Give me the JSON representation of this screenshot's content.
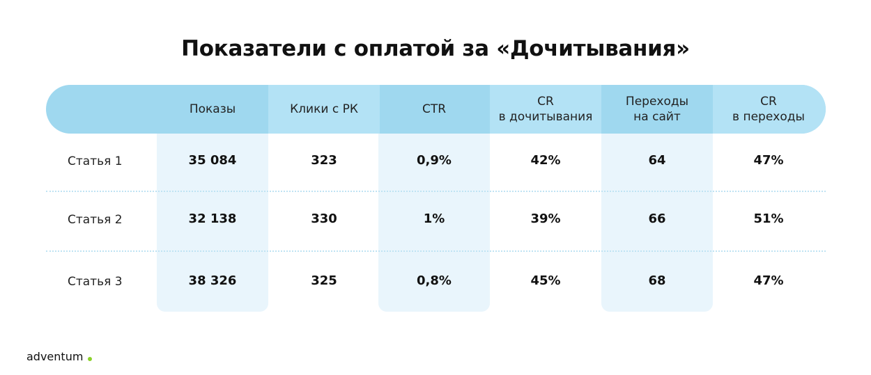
{
  "title": "Показатели с оплатой за «Дочитывания»",
  "table": {
    "header": [
      [
        "Показы"
      ],
      [
        "Клики с РК"
      ],
      [
        "CTR"
      ],
      [
        "CR",
        "в дочитывания"
      ],
      [
        "Переходы",
        "на сайт"
      ],
      [
        "CR",
        "в переходы"
      ]
    ],
    "rows": [
      [
        "Статья 1",
        "35 084",
        "323",
        "0,9%",
        "42%",
        "64",
        "47%"
      ],
      [
        "Статья 2",
        "32 138",
        "330",
        "1%",
        "39%",
        "66",
        "51%"
      ],
      [
        "Статья 3",
        "38 326",
        "325",
        "0,8%",
        "45%",
        "68",
        "47%"
      ]
    ]
  },
  "logo": "adventum"
}
